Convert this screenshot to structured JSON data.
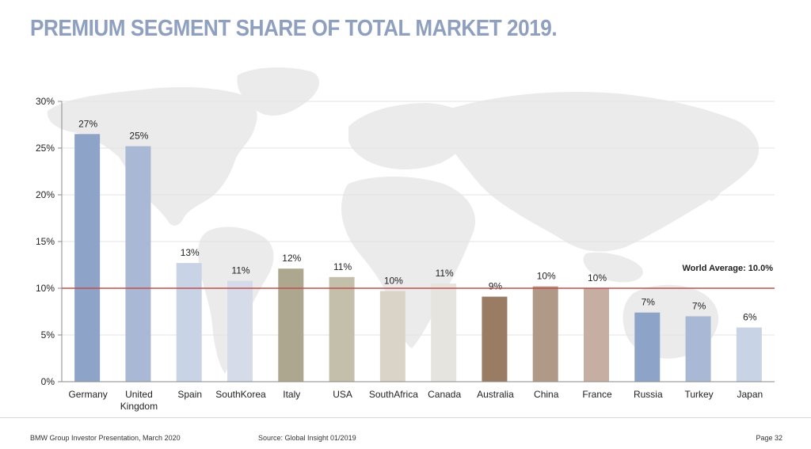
{
  "title": "PREMIUM SEGMENT SHARE OF TOTAL MARKET 2019.",
  "footer": {
    "left": "BMW Group Investor Presentation, March 2020",
    "source": "Source: Global Insight 01/2019",
    "page": "Page 32"
  },
  "chart_data": {
    "type": "bar",
    "categories": [
      "Germany",
      "United Kingdom",
      "Spain",
      "SouthKorea",
      "Italy",
      "USA",
      "SouthAfrica",
      "Canada",
      "Australia",
      "China",
      "France",
      "Russia",
      "Turkey",
      "Japan"
    ],
    "values": [
      26.5,
      25.2,
      12.7,
      10.8,
      12.1,
      11.2,
      9.7,
      10.5,
      9.1,
      10.2,
      10.0,
      7.4,
      7.0,
      5.8
    ],
    "value_labels": [
      "27%",
      "25%",
      "13%",
      "11%",
      "12%",
      "11%",
      "10%",
      "11%",
      "9%",
      "10%",
      "10%",
      "7%",
      "7%",
      "6%"
    ],
    "bar_colors": [
      "#8ea3c8",
      "#a9b8d5",
      "#c8d3e6",
      "#d5dbe8",
      "#aca78e",
      "#c3bfaa",
      "#d9d4c7",
      "#e6e4de",
      "#9a7b63",
      "#b09a87",
      "#c7aea2",
      "#8ea3c8",
      "#a9b8d5",
      "#c8d3e6"
    ],
    "ylim": [
      0,
      30
    ],
    "yticks": [
      "0%",
      "5%",
      "10%",
      "15%",
      "20%",
      "25%",
      "30%"
    ],
    "grid": true,
    "reference_line": {
      "value": 10.0,
      "label": "World Average: 10.0%",
      "color": "#c0504d"
    }
  }
}
